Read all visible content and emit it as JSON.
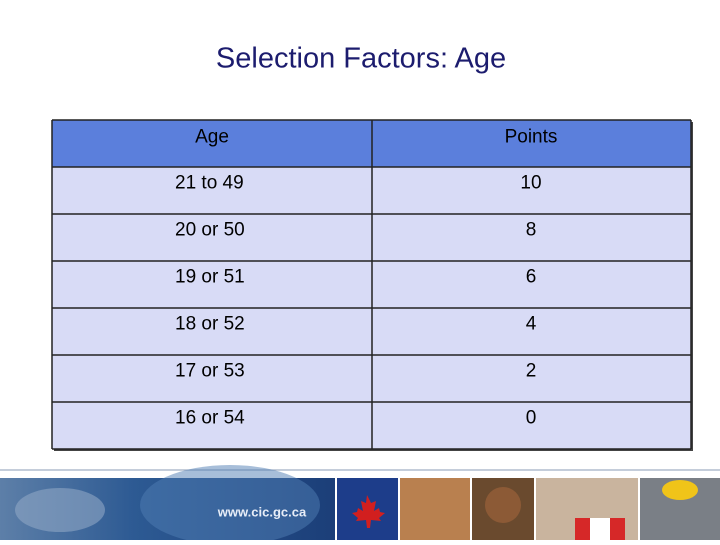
{
  "title": "Selection Factors: Age",
  "table": {
    "header": [
      "Age",
      "Points"
    ],
    "rows": [
      [
        "21 to 49",
        10
      ],
      [
        "20 or 50",
        8
      ],
      [
        "19 or 51",
        6
      ],
      [
        "18 or 52",
        4
      ],
      [
        "17 or 53",
        2
      ],
      [
        "16 or 54",
        0
      ]
    ]
  },
  "footer": {
    "url": "www.cic.gc.ca"
  }
}
